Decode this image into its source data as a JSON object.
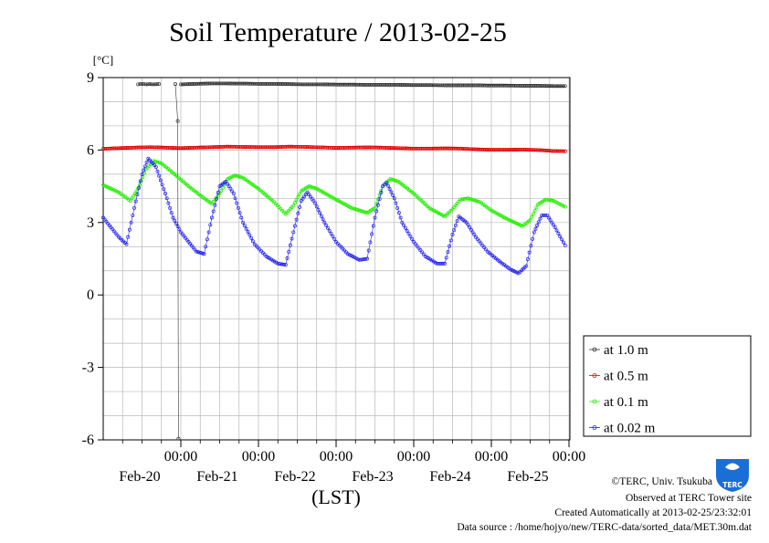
{
  "chart_data": {
    "type": "line",
    "title": "Soil Temperature / 2013-02-25",
    "ylabel": "[°C]",
    "xlabel": "(LST)",
    "ylim": [
      -6,
      9
    ],
    "y_ticks": [
      9,
      6,
      3,
      0,
      -3,
      -6
    ],
    "x_range_days": [
      19.0,
      25.0
    ],
    "x_ticks": [
      {
        "time": "00:00",
        "date": "Feb-20",
        "day": 20
      },
      {
        "time": "00:00",
        "date": "Feb-21",
        "day": 21
      },
      {
        "time": "00:00",
        "date": "Feb-22",
        "day": 22
      },
      {
        "time": "00:00",
        "date": "Feb-23",
        "day": 23
      },
      {
        "time": "00:00",
        "date": "Feb-24",
        "day": 24
      },
      {
        "time": "00:00",
        "date": "Feb-25",
        "day": 25
      }
    ],
    "grid": true,
    "legend_position": "right",
    "series": [
      {
        "name": "at 1.0 m",
        "color": "#333333",
        "segments": [
          [
            [
              19.45,
              8.72
            ],
            [
              19.5,
              8.74
            ],
            [
              19.55,
              8.72
            ],
            [
              19.6,
              8.73
            ],
            [
              19.65,
              8.72
            ],
            [
              19.72,
              8.73
            ]
          ],
          [
            [
              19.93,
              8.73
            ],
            [
              19.96,
              7.2
            ],
            [
              19.97,
              -5.95
            ]
          ],
          [
            [
              20.0,
              8.72
            ],
            [
              20.1,
              8.73
            ],
            [
              20.2,
              8.74
            ],
            [
              20.3,
              8.75
            ],
            [
              20.4,
              8.76
            ],
            [
              20.55,
              8.76
            ],
            [
              20.7,
              8.75
            ],
            [
              20.85,
              8.75
            ],
            [
              21.0,
              8.74
            ],
            [
              21.2,
              8.74
            ],
            [
              21.4,
              8.73
            ],
            [
              21.6,
              8.72
            ],
            [
              21.8,
              8.72
            ],
            [
              22.0,
              8.71
            ],
            [
              22.2,
              8.71
            ],
            [
              22.4,
              8.7
            ],
            [
              22.6,
              8.7
            ],
            [
              22.8,
              8.7
            ],
            [
              23.0,
              8.69
            ],
            [
              23.2,
              8.69
            ],
            [
              23.4,
              8.68
            ],
            [
              23.6,
              8.68
            ],
            [
              23.8,
              8.68
            ],
            [
              24.0,
              8.67
            ],
            [
              24.2,
              8.67
            ],
            [
              24.4,
              8.66
            ],
            [
              24.6,
              8.66
            ],
            [
              24.8,
              8.65
            ],
            [
              24.95,
              8.65
            ]
          ]
        ]
      },
      {
        "name": "at 0.5 m",
        "color": "#e00000",
        "points": [
          [
            19.0,
            6.05
          ],
          [
            19.2,
            6.08
          ],
          [
            19.4,
            6.1
          ],
          [
            19.6,
            6.12
          ],
          [
            19.8,
            6.1
          ],
          [
            20.0,
            6.08
          ],
          [
            20.2,
            6.1
          ],
          [
            20.4,
            6.12
          ],
          [
            20.6,
            6.14
          ],
          [
            20.8,
            6.13
          ],
          [
            21.0,
            6.12
          ],
          [
            21.2,
            6.12
          ],
          [
            21.4,
            6.14
          ],
          [
            21.6,
            6.13
          ],
          [
            21.8,
            6.11
          ],
          [
            22.0,
            6.09
          ],
          [
            22.2,
            6.1
          ],
          [
            22.4,
            6.11
          ],
          [
            22.6,
            6.1
          ],
          [
            22.8,
            6.08
          ],
          [
            23.0,
            6.06
          ],
          [
            23.2,
            6.06
          ],
          [
            23.4,
            6.07
          ],
          [
            23.6,
            6.06
          ],
          [
            23.8,
            6.03
          ],
          [
            24.0,
            6.01
          ],
          [
            24.2,
            6.01
          ],
          [
            24.4,
            6.02
          ],
          [
            24.6,
            6.0
          ],
          [
            24.8,
            5.96
          ],
          [
            24.95,
            5.95
          ]
        ]
      },
      {
        "name": "at 0.1 m",
        "color": "#22ee00",
        "points": [
          [
            19.0,
            4.55
          ],
          [
            19.2,
            4.25
          ],
          [
            19.35,
            3.9
          ],
          [
            19.45,
            4.4
          ],
          [
            19.55,
            5.2
          ],
          [
            19.65,
            5.55
          ],
          [
            19.75,
            5.45
          ],
          [
            19.9,
            5.05
          ],
          [
            20.1,
            4.5
          ],
          [
            20.3,
            4.0
          ],
          [
            20.4,
            3.78
          ],
          [
            20.5,
            4.2
          ],
          [
            20.6,
            4.8
          ],
          [
            20.7,
            4.95
          ],
          [
            20.8,
            4.85
          ],
          [
            21.0,
            4.4
          ],
          [
            21.2,
            3.85
          ],
          [
            21.35,
            3.35
          ],
          [
            21.45,
            3.7
          ],
          [
            21.55,
            4.3
          ],
          [
            21.65,
            4.5
          ],
          [
            21.75,
            4.4
          ],
          [
            22.0,
            3.95
          ],
          [
            22.2,
            3.6
          ],
          [
            22.4,
            3.4
          ],
          [
            22.5,
            3.6
          ],
          [
            22.6,
            4.5
          ],
          [
            22.7,
            4.8
          ],
          [
            22.8,
            4.7
          ],
          [
            23.0,
            4.2
          ],
          [
            23.2,
            3.6
          ],
          [
            23.4,
            3.25
          ],
          [
            23.5,
            3.55
          ],
          [
            23.6,
            3.95
          ],
          [
            23.7,
            4.0
          ],
          [
            23.85,
            3.85
          ],
          [
            24.0,
            3.5
          ],
          [
            24.2,
            3.15
          ],
          [
            24.4,
            2.85
          ],
          [
            24.5,
            3.1
          ],
          [
            24.6,
            3.75
          ],
          [
            24.7,
            3.95
          ],
          [
            24.8,
            3.9
          ],
          [
            24.95,
            3.65
          ]
        ]
      },
      {
        "name": "at 0.02 m",
        "color": "#2222ee",
        "points": [
          [
            19.0,
            3.2
          ],
          [
            19.1,
            2.8
          ],
          [
            19.2,
            2.4
          ],
          [
            19.3,
            2.1
          ],
          [
            19.4,
            3.6
          ],
          [
            19.5,
            5.0
          ],
          [
            19.58,
            5.65
          ],
          [
            19.68,
            5.3
          ],
          [
            19.8,
            4.2
          ],
          [
            19.9,
            3.2
          ],
          [
            20.0,
            2.6
          ],
          [
            20.1,
            2.2
          ],
          [
            20.2,
            1.8
          ],
          [
            20.3,
            1.7
          ],
          [
            20.4,
            3.2
          ],
          [
            20.5,
            4.5
          ],
          [
            20.58,
            4.7
          ],
          [
            20.68,
            4.2
          ],
          [
            20.8,
            3.0
          ],
          [
            20.95,
            2.1
          ],
          [
            21.1,
            1.6
          ],
          [
            21.25,
            1.3
          ],
          [
            21.35,
            1.25
          ],
          [
            21.45,
            2.6
          ],
          [
            21.55,
            3.9
          ],
          [
            21.63,
            4.25
          ],
          [
            21.73,
            3.8
          ],
          [
            21.85,
            3.0
          ],
          [
            22.0,
            2.2
          ],
          [
            22.15,
            1.7
          ],
          [
            22.3,
            1.45
          ],
          [
            22.4,
            1.5
          ],
          [
            22.5,
            3.2
          ],
          [
            22.6,
            4.5
          ],
          [
            22.65,
            4.65
          ],
          [
            22.75,
            4.0
          ],
          [
            22.85,
            3.0
          ],
          [
            23.0,
            2.2
          ],
          [
            23.15,
            1.6
          ],
          [
            23.3,
            1.3
          ],
          [
            23.4,
            1.3
          ],
          [
            23.5,
            2.5
          ],
          [
            23.58,
            3.25
          ],
          [
            23.68,
            3.0
          ],
          [
            23.8,
            2.4
          ],
          [
            23.95,
            1.8
          ],
          [
            24.1,
            1.4
          ],
          [
            24.25,
            1.05
          ],
          [
            24.35,
            0.9
          ],
          [
            24.45,
            1.2
          ],
          [
            24.55,
            2.6
          ],
          [
            24.65,
            3.3
          ],
          [
            24.72,
            3.3
          ],
          [
            24.82,
            2.8
          ],
          [
            24.95,
            2.05
          ]
        ]
      }
    ]
  },
  "credits": {
    "line1": "©TERC, Univ. Tsukuba",
    "line2": "Observed at TERC Tower site",
    "line3": "Created Automatically at 2013-02-25/23:32:01",
    "line4": "Data source : /home/hojyo/new/TERC-data/sorted_data/MET.30m.dat"
  },
  "logo": {
    "text": "TERC",
    "color": "#1a6fd6"
  }
}
